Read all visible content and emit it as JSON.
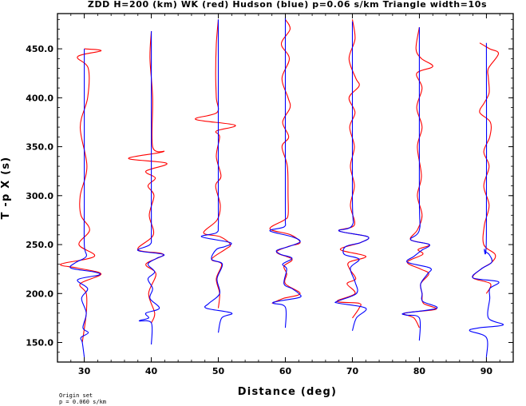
{
  "chart_data": {
    "type": "line",
    "title": "ZDD H=200 (km) WK (red) Hudson (blue) p=0.06 s/km Triangle width=10s",
    "xlabel": "Distance (deg)",
    "ylabel": "T -p X (s)",
    "xlim": [
      26,
      94
    ],
    "ylim": [
      130,
      486
    ],
    "xticks": [
      {
        "value": 30,
        "label": "30"
      },
      {
        "value": 40,
        "label": "40"
      },
      {
        "value": 50,
        "label": "50"
      },
      {
        "value": 60,
        "label": "60"
      },
      {
        "value": 70,
        "label": "70"
      },
      {
        "value": 80,
        "label": "80"
      },
      {
        "value": 90,
        "label": "90"
      }
    ],
    "yticks": [
      {
        "value": 150,
        "label": "150.0"
      },
      {
        "value": 200,
        "label": "200.0"
      },
      {
        "value": 250,
        "label": "250.0"
      },
      {
        "value": 300,
        "label": "300.0"
      },
      {
        "value": 350,
        "label": "350.0"
      },
      {
        "value": 400,
        "label": "400.0"
      },
      {
        "value": 450,
        "label": "450.0"
      }
    ],
    "grid": false,
    "series_colors": {
      "WK": "#ff0000",
      "Hudson": "#0000ff"
    },
    "traces": [
      {
        "distance": 30,
        "red": {
          "t": [
            450,
            448,
            442,
            430,
            400,
            370,
            330,
            300,
            280,
            265,
            250,
            238,
            230,
            226,
            220,
            210,
            200,
            180,
            150
          ],
          "dx": [
            0,
            2.5,
            -1,
            0.6,
            0.5,
            -0.6,
            0.4,
            -0.6,
            -0.5,
            0.8,
            -0.8,
            1.5,
            -3.5,
            -1,
            2.5,
            -0.6,
            0.3,
            0.3,
            -0.3
          ]
        },
        "blue": {
          "t": [
            450,
            400,
            300,
            250,
            238,
            232,
            226,
            222,
            219,
            214,
            205,
            195,
            180,
            165,
            160,
            155,
            150,
            135
          ],
          "dx": [
            0,
            0,
            0,
            0,
            0.3,
            -1.2,
            -2,
            1.5,
            2.2,
            -1,
            0.5,
            -0.4,
            0.3,
            -0.2,
            0.6,
            -0.5,
            -0.3,
            0
          ]
        }
      },
      {
        "distance": 40,
        "red": {
          "t": [
            468,
            440,
            400,
            350,
            345,
            338,
            333,
            325,
            318,
            310,
            300,
            280,
            260,
            245,
            240,
            230,
            220,
            200,
            180,
            170
          ],
          "dx": [
            0,
            -0.2,
            0.2,
            0.2,
            1.8,
            -3.4,
            2.3,
            -0.8,
            0.6,
            -0.5,
            0.4,
            -0.3,
            0.3,
            -2,
            1.8,
            -0.8,
            0.7,
            -0.4,
            0.5,
            0
          ]
        },
        "blue": {
          "t": [
            468,
            300,
            260,
            250,
            244,
            240,
            236,
            230,
            222,
            215,
            205,
            195,
            185,
            180,
            175,
            172,
            170,
            148
          ],
          "dx": [
            0,
            0,
            0,
            -0.2,
            -2,
            1.8,
            0.8,
            -0.5,
            0.5,
            -0.5,
            0.2,
            -0.2,
            1.2,
            -0.8,
            -0.4,
            -1.8,
            0,
            0
          ]
        }
      },
      {
        "distance": 50,
        "red": {
          "t": [
            480,
            455,
            425,
            400,
            385,
            378,
            372,
            366,
            360,
            340,
            320,
            310,
            290,
            275,
            262,
            258,
            250,
            245,
            235,
            230,
            215,
            200,
            185
          ],
          "dx": [
            0,
            -0.3,
            -0.4,
            -0.3,
            -0.2,
            -3.4,
            2.5,
            -0.3,
            0.2,
            -0.3,
            0.4,
            -0.4,
            0.3,
            -0.2,
            -2.2,
            0.3,
            1.8,
            1,
            -1,
            0.5,
            -0.3,
            0.2,
            0
          ]
        },
        "blue": {
          "t": [
            480,
            300,
            270,
            262,
            258,
            252,
            248,
            245,
            235,
            230,
            215,
            200,
            190,
            185,
            180,
            175,
            160
          ],
          "dx": [
            0,
            0,
            0,
            -0.3,
            -2.5,
            1.8,
            1,
            -0.3,
            -1,
            0.6,
            -0.2,
            0.2,
            -1.4,
            -1.8,
            2,
            0.5,
            0
          ]
        }
      },
      {
        "distance": 60,
        "red": {
          "t": [
            480,
            470,
            455,
            440,
            420,
            400,
            390,
            375,
            360,
            350,
            330,
            300,
            280,
            275,
            266,
            260,
            252,
            248,
            242,
            235,
            228,
            220,
            210,
            200,
            195,
            190
          ],
          "dx": [
            0,
            0.7,
            -0.6,
            0.6,
            -0.5,
            0.4,
            0.7,
            -0.4,
            0.5,
            -0.5,
            0.3,
            0.4,
            0.4,
            -0.2,
            -2.3,
            0.8,
            2.2,
            0.4,
            -1.3,
            1,
            -0.2,
            0.2,
            0,
            2.2,
            -0.3,
            -2
          ]
        },
        "blue": {
          "t": [
            482,
            300,
            275,
            268,
            264,
            258,
            253,
            248,
            244,
            240,
            236,
            230,
            225,
            210,
            205,
            200,
            196,
            192,
            190,
            186,
            165
          ],
          "dx": [
            0,
            0,
            0,
            -0.2,
            -2.3,
            1,
            2.2,
            0.5,
            -1.3,
            -0.7,
            1,
            -0.4,
            0.2,
            -0.2,
            1,
            2,
            2.1,
            -1.2,
            -1.8,
            0,
            0
          ]
        }
      },
      {
        "distance": 70,
        "red": {
          "t": [
            480,
            460,
            440,
            420,
            412,
            400,
            385,
            370,
            350,
            330,
            310,
            290,
            270,
            264,
            258,
            252,
            245,
            238,
            232,
            225,
            215,
            210,
            200,
            192,
            190,
            185,
            175
          ],
          "dx": [
            0,
            0.4,
            -0.5,
            0.5,
            1,
            -0.5,
            0.4,
            -0.4,
            0.3,
            -0.3,
            0.3,
            -0.3,
            0.3,
            -2,
            2.3,
            1.2,
            -1.8,
            2,
            -0.5,
            -0.4,
            0.5,
            -0.8,
            0.4,
            -2.3,
            1,
            1,
            0
          ]
        },
        "blue": {
          "t": [
            478,
            300,
            270,
            264,
            258,
            252,
            248,
            240,
            235,
            226,
            212,
            200,
            192,
            190,
            185,
            175,
            162
          ],
          "dx": [
            0,
            0,
            0,
            -2,
            2.3,
            1.2,
            -1,
            -1.2,
            1,
            -0.3,
            0.4,
            0.6,
            -2.3,
            -2,
            2,
            0.6,
            0
          ]
        }
      },
      {
        "distance": 80,
        "red": {
          "t": [
            472,
            450,
            440,
            432,
            425,
            410,
            390,
            370,
            350,
            320,
            300,
            280,
            265,
            255,
            250,
            245,
            240,
            232,
            225,
            220,
            210,
            200,
            190,
            184,
            180,
            175,
            165
          ],
          "dx": [
            0,
            -0.5,
            0.3,
            2,
            -0.4,
            0.4,
            -0.4,
            0.4,
            -0.3,
            0.3,
            -0.3,
            0.4,
            -0.3,
            -1.3,
            1.5,
            -0.2,
            0.5,
            -1.8,
            0.2,
            1.4,
            0.2,
            0.4,
            0.6,
            2.5,
            -2.2,
            -0.8,
            0
          ]
        },
        "blue": {
          "t": [
            472,
            300,
            265,
            255,
            250,
            244,
            238,
            232,
            226,
            220,
            210,
            200,
            192,
            185,
            180,
            178,
            175,
            152
          ],
          "dx": [
            0,
            0,
            0,
            -1.3,
            1.5,
            0.3,
            -0.8,
            -1.8,
            1.6,
            1.2,
            0.2,
            0.4,
            0.5,
            2.6,
            -2.2,
            -2,
            0,
            0
          ]
        }
      },
      {
        "distance": 90,
        "red": {
          "t": [
            456,
            450,
            445,
            430,
            420,
            405,
            395,
            385,
            375,
            360,
            345,
            330,
            310,
            290,
            270,
            250,
            240,
            232,
            225,
            216,
            210,
            200
          ],
          "dx": [
            -1,
            0.5,
            1.8,
            0.3,
            0.3,
            0.4,
            -0.3,
            -1,
            0.6,
            0.5,
            -0.4,
            0.4,
            -0.4,
            0.4,
            -0.3,
            -0.4,
            1.3,
            0.8,
            -0.8,
            -2,
            0.6,
            0
          ]
        },
        "blue": {
          "t": [
            456,
            260,
            245,
            240,
            232,
            225,
            216,
            212,
            205,
            195,
            175,
            168,
            165,
            162,
            155,
            135
          ],
          "dx": [
            0,
            0,
            -0.3,
            0.4,
            0.8,
            -0.8,
            -2,
            1.8,
            0.5,
            0.5,
            0.3,
            2.5,
            -1,
            -2.5,
            0,
            0
          ]
        }
      }
    ]
  },
  "footnote": {
    "line1": "Origin set",
    "line2": "p = 0.060 s/km"
  }
}
